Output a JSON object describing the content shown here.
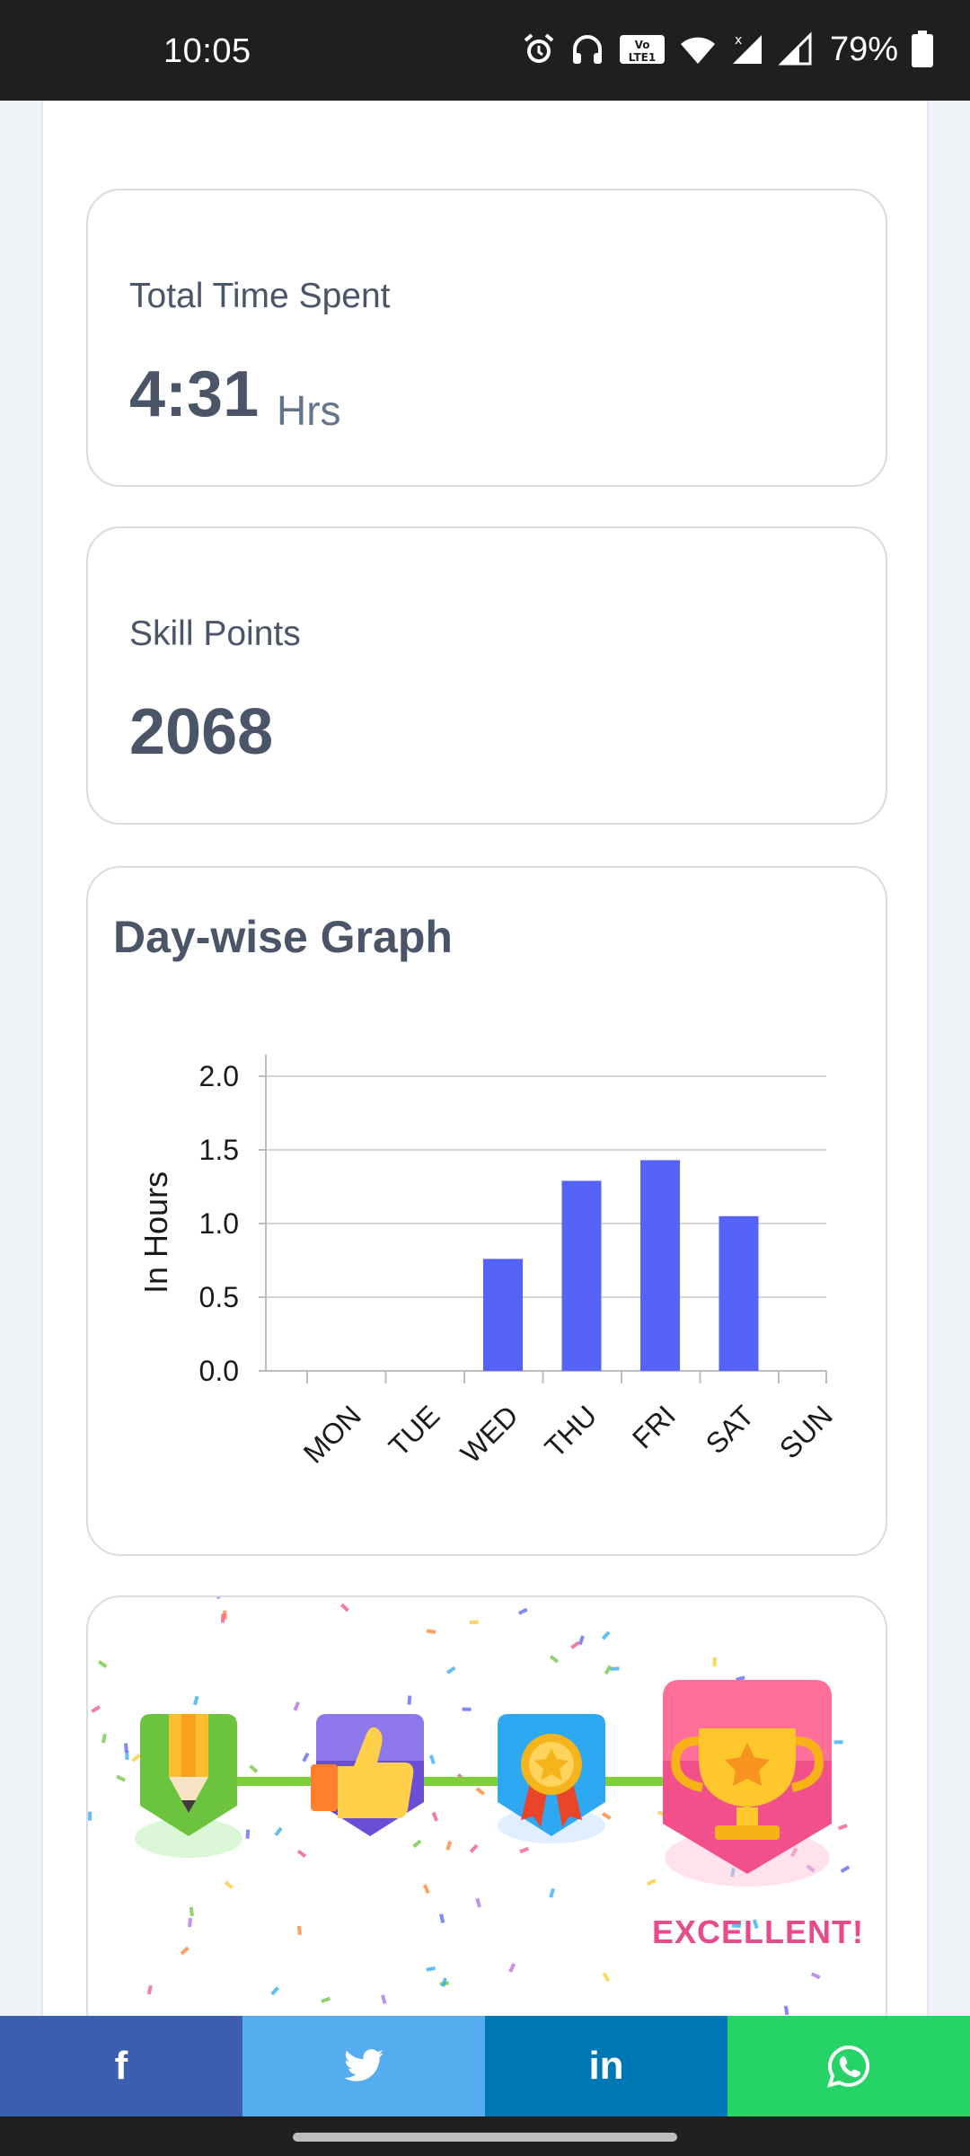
{
  "status_bar": {
    "time": "10:05",
    "battery": "79%",
    "icons": [
      "alarm-icon",
      "headphones-icon",
      "volte-icon",
      "wifi-icon",
      "signal-icon",
      "signal-icon",
      "battery-icon"
    ]
  },
  "stats": {
    "total_time": {
      "label": "Total Time Spent",
      "value": "4:31",
      "unit": "Hrs"
    },
    "skill_points": {
      "label": "Skill Points",
      "value": "2068"
    }
  },
  "graph_card": {
    "title": "Day-wise Graph"
  },
  "chart_data": {
    "type": "bar",
    "title": "Day-wise Graph",
    "categories": [
      "MON",
      "TUE",
      "WED",
      "THU",
      "FRI",
      "SAT",
      "SUN"
    ],
    "values": [
      0,
      0,
      0.76,
      1.29,
      1.43,
      1.05,
      0
    ],
    "ylabel": "In Hours",
    "xlabel": "",
    "ylim": [
      0,
      2.0
    ],
    "yticks": [
      "0.0",
      "0.5",
      "1.0",
      "1.5",
      "2.0"
    ],
    "grid": true,
    "bar_color": "#5563f7"
  },
  "badges": {
    "items": [
      "pencil-badge-icon",
      "thumbs-up-badge-icon",
      "medal-badge-icon",
      "trophy-badge-icon"
    ],
    "status_label": "EXCELLENT!"
  },
  "share_bar": {
    "facebook_label": "f",
    "linkedin_label": "in",
    "colors": {
      "facebook": "#3b5eaf",
      "twitter": "#55acee",
      "linkedin": "#0077b5",
      "whatsapp": "#25d366"
    }
  }
}
